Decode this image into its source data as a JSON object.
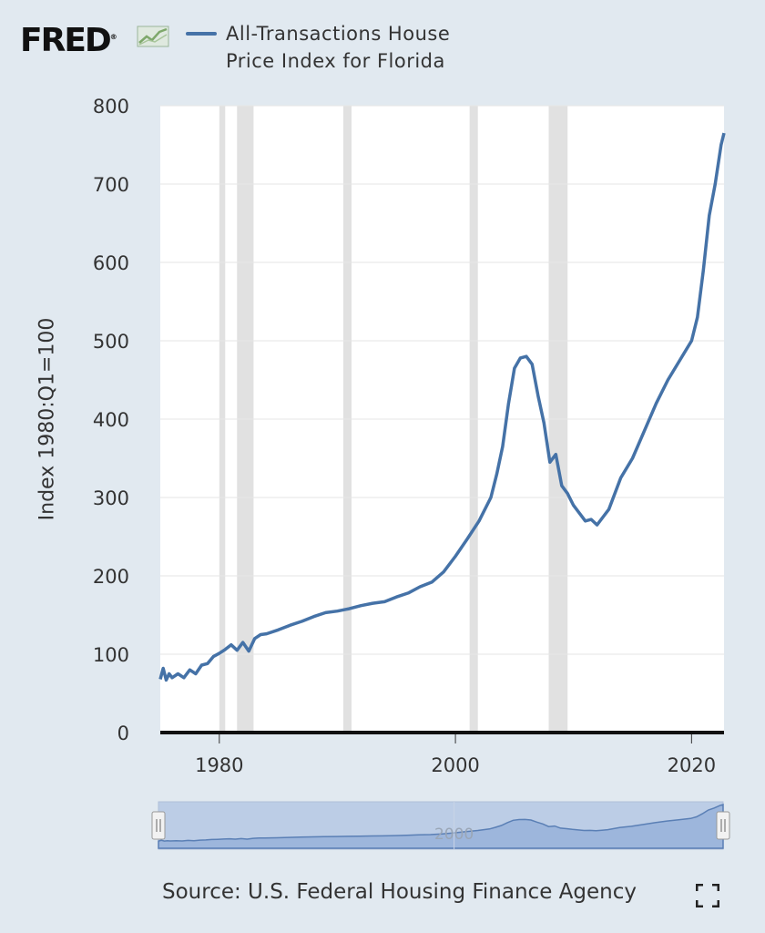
{
  "brand": {
    "logo_text": "FRED",
    "logo_mark": "®",
    "logo_icon": "trend-line-icon"
  },
  "legend": {
    "series_name": "All-Transactions House Price Index for Florida",
    "color": "#4572a7"
  },
  "source_text": "Source: U.S. Federal Housing Finance Agency",
  "fullscreen_icon": "expand-icon",
  "chart_data": {
    "type": "line",
    "title": "",
    "xlabel": "",
    "ylabel": "Index 1980:Q1=100",
    "xlim": [
      1975.0,
      2022.75
    ],
    "ylim": [
      0,
      800
    ],
    "y_ticks": [
      0,
      100,
      200,
      300,
      400,
      500,
      600,
      700,
      800
    ],
    "x_ticks": [
      1980,
      2000,
      2020
    ],
    "grid": true,
    "legend_position": "top",
    "recessions": [
      [
        1980.0,
        1980.5
      ],
      [
        1981.5,
        1982.9
      ],
      [
        1990.5,
        1991.2
      ],
      [
        2001.2,
        2001.9
      ],
      [
        2007.9,
        2009.5
      ]
    ],
    "recession_color": "#e1e1e1",
    "series": [
      {
        "name": "All-Transactions House Price Index for Florida",
        "color": "#4572a7",
        "x": [
          1975.0,
          1975.25,
          1975.5,
          1975.75,
          1976.0,
          1976.5,
          1977.0,
          1977.5,
          1978.0,
          1978.5,
          1979.0,
          1979.5,
          1980.0,
          1980.5,
          1981.0,
          1981.5,
          1982.0,
          1982.5,
          1983.0,
          1983.5,
          1984.0,
          1985.0,
          1986.0,
          1987.0,
          1988.0,
          1989.0,
          1990.0,
          1991.0,
          1992.0,
          1993.0,
          1994.0,
          1995.0,
          1996.0,
          1997.0,
          1998.0,
          1999.0,
          2000.0,
          2001.0,
          2002.0,
          2003.0,
          2003.5,
          2004.0,
          2004.5,
          2005.0,
          2005.5,
          2006.0,
          2006.5,
          2007.0,
          2007.5,
          2008.0,
          2008.5,
          2009.0,
          2009.5,
          2010.0,
          2010.5,
          2011.0,
          2011.5,
          2012.0,
          2012.5,
          2013.0,
          2014.0,
          2015.0,
          2016.0,
          2017.0,
          2018.0,
          2019.0,
          2020.0,
          2020.5,
          2021.0,
          2021.5,
          2022.0,
          2022.5,
          2022.75
        ],
        "values": [
          68,
          82,
          67,
          75,
          70,
          75,
          70,
          80,
          75,
          86,
          88,
          97,
          101,
          106,
          112,
          105,
          115,
          104,
          120,
          125,
          126,
          131,
          137,
          142,
          148,
          153,
          155,
          158,
          162,
          165,
          167,
          173,
          178,
          186,
          192,
          205,
          225,
          247,
          270,
          300,
          330,
          365,
          420,
          465,
          478,
          480,
          470,
          430,
          395,
          345,
          355,
          315,
          305,
          290,
          280,
          270,
          272,
          265,
          275,
          285,
          325,
          350,
          385,
          420,
          450,
          475,
          500,
          530,
          590,
          660,
          700,
          750,
          765
        ]
      }
    ]
  }
}
